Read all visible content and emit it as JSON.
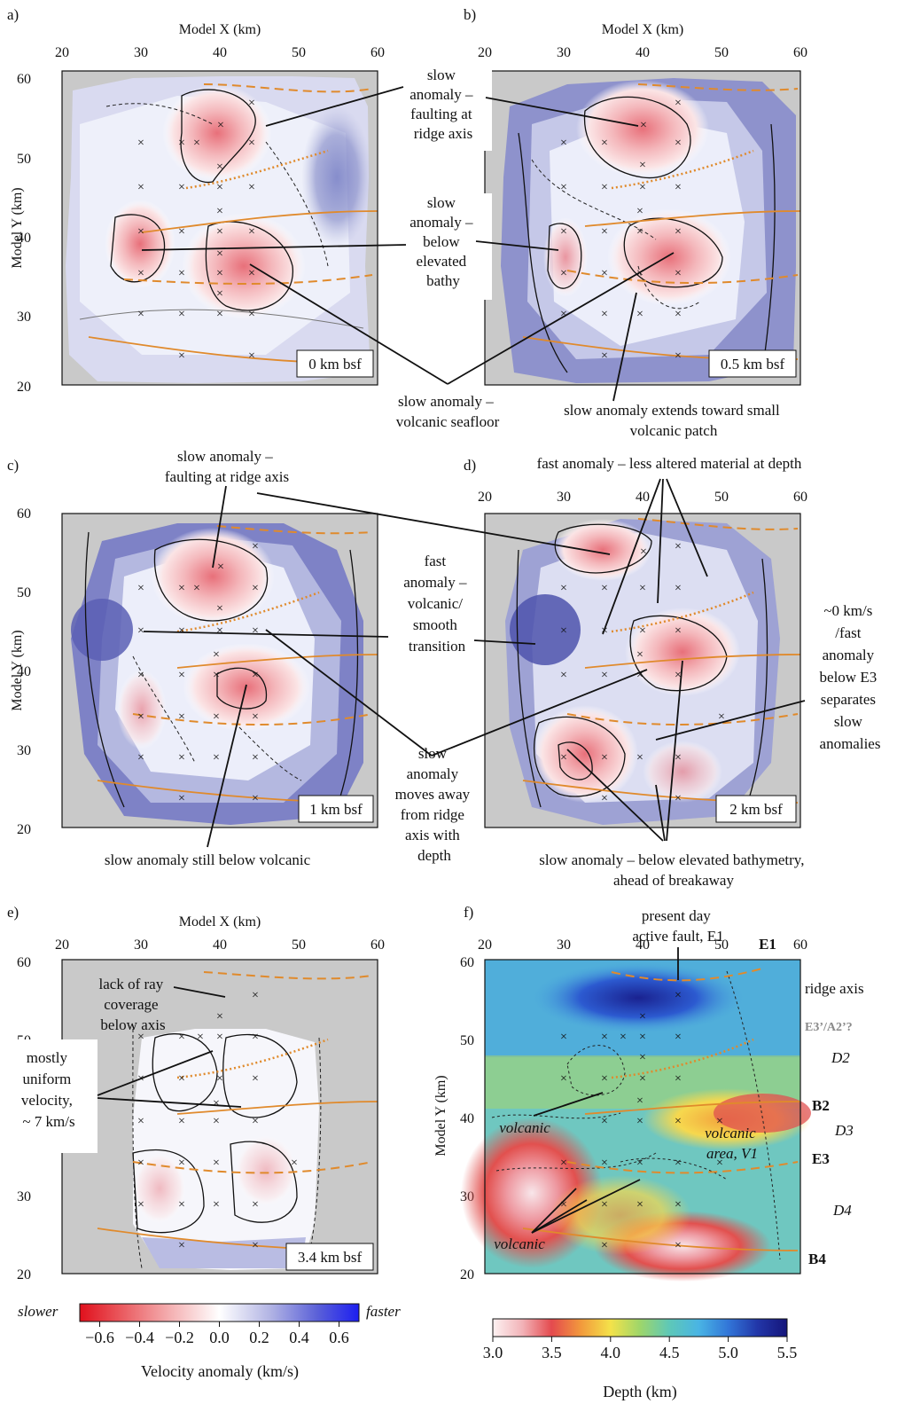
{
  "panels": [
    {
      "id": "a",
      "letter": "a)",
      "depth_label": "0 km bsf",
      "x_axis_title": "Model X (km)",
      "y_axis_title": "Model Y (km)",
      "show_x_title": true,
      "show_y_title": true,
      "show_top_ticks": true,
      "show_left_ticks": true
    },
    {
      "id": "b",
      "letter": "b)",
      "depth_label": "0.5 km bsf",
      "x_axis_title": "Model X (km)",
      "y_axis_title": "",
      "show_x_title": true,
      "show_y_title": false,
      "show_top_ticks": true,
      "show_left_ticks": false
    },
    {
      "id": "c",
      "letter": "c)",
      "depth_label": "1 km bsf",
      "x_axis_title": "",
      "y_axis_title": "Model Y (km)",
      "show_x_title": false,
      "show_y_title": true,
      "show_top_ticks": false,
      "show_left_ticks": true
    },
    {
      "id": "d",
      "letter": "d)",
      "depth_label": "2 km bsf",
      "x_axis_title": "",
      "y_axis_title": "",
      "show_x_title": false,
      "show_y_title": false,
      "show_top_ticks": true,
      "show_left_ticks": false
    },
    {
      "id": "e",
      "letter": "e)",
      "depth_label": "3.4 km bsf",
      "x_axis_title": "Model X (km)",
      "y_axis_title": "",
      "show_x_title": true,
      "show_y_title": false,
      "show_top_ticks": true,
      "show_left_ticks": true
    },
    {
      "id": "f",
      "letter": "f)",
      "depth_label": "",
      "x_axis_title": "",
      "y_axis_title": "Model Y (km)",
      "show_x_title": false,
      "show_y_title": true,
      "show_top_ticks": true,
      "show_left_ticks": true
    }
  ],
  "axis": {
    "x_ticks": [
      "20",
      "30",
      "40",
      "50",
      "60"
    ],
    "y_ticks": [
      "20",
      "30",
      "40",
      "50",
      "60"
    ],
    "x_range": [
      20,
      60
    ],
    "y_range": [
      20,
      60
    ]
  },
  "annotations": {
    "a_b_faulting": [
      "slow",
      "anomaly –",
      "faulting at",
      "ridge axis"
    ],
    "a_b_elevated": [
      "slow",
      "anomaly –",
      "below",
      "elevated",
      "bathy"
    ],
    "a_b_volcanic_seafloor": [
      "slow anomaly –",
      "volcanic seafloor"
    ],
    "b_small_patch": [
      "slow anomaly extends toward small",
      "volcanic patch"
    ],
    "c_faulting": [
      "slow anomaly –",
      "faulting at ridge axis"
    ],
    "c_d_fast_volcanic": [
      "fast",
      "anomaly –",
      "volcanic/",
      "smooth",
      "transition"
    ],
    "c_d_moves_away": [
      "slow",
      "anomaly",
      "moves away",
      "from ridge",
      "axis with",
      "depth"
    ],
    "c_still_below": [
      "slow anomaly still below volcanic"
    ],
    "d_fast_less_altered": [
      "fast anomaly – less altered material at depth"
    ],
    "d_zero_fast": [
      "~0 km/s",
      "/fast",
      "anomaly",
      "below E3",
      "separates",
      "slow",
      "anomalies"
    ],
    "d_below_elevated": [
      "slow anomaly – below elevated bathymetry,",
      "ahead of breakaway"
    ],
    "e_lack_ray": [
      "lack of ray",
      "coverage",
      "below axis"
    ],
    "e_uniform": [
      "mostly",
      "uniform",
      "velocity,",
      "~ 7 km/s"
    ],
    "f_active_fault": [
      "present day",
      "active fault, E1"
    ],
    "f_volcanic_1": "volcanic",
    "f_volcanic_2": "volcanic",
    "f_volcanic_area": [
      "volcanic",
      "area, V1"
    ]
  },
  "f_right_labels": {
    "E1": "E1",
    "ridge_axis": "ridge axis",
    "E3A2": "E3’/A2’?",
    "D2": "D2",
    "B2": "B2",
    "D3": "D3",
    "E3": "E3",
    "D4": "D4",
    "B4": "B4"
  },
  "velocity_colorbar": {
    "title": "Velocity anomaly (km/s)",
    "left_label": "slower",
    "right_label": "faster",
    "ticks": [
      "−0.6",
      "−0.4",
      "−0.2",
      "0.0",
      "0.2",
      "0.4",
      "0.6"
    ],
    "range": [
      -0.7,
      0.7
    ]
  },
  "depth_colorbar": {
    "title": "Depth (km)",
    "ticks": [
      "3.0",
      "3.5",
      "4.0",
      "4.5",
      "5.0",
      "5.5"
    ],
    "range": [
      3.0,
      5.5
    ]
  },
  "colors": {
    "panel_background": "#c8c8c8",
    "slow": "#e01020",
    "fast": "#1a22ee",
    "neutral": "#ffffff",
    "orange_lines": "#e08a2c"
  }
}
